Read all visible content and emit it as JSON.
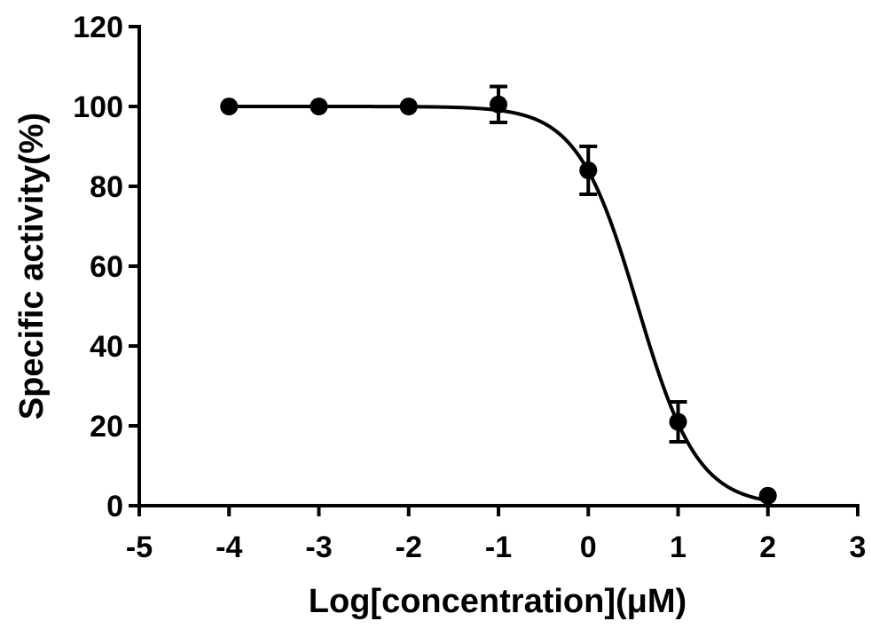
{
  "chart_data": {
    "type": "scatter",
    "title": "",
    "xlabel": "Log[concentration](μM)",
    "ylabel": "Specific activity(%)",
    "xlim": [
      -5,
      3
    ],
    "ylim": [
      0,
      120
    ],
    "xticks": [
      -5,
      -4,
      -3,
      -2,
      -1,
      0,
      1,
      2,
      3
    ],
    "xtick_labels": [
      "-5",
      "-4",
      "-3",
      "-2",
      "-1",
      "0",
      "1",
      "2",
      "3"
    ],
    "yticks": [
      0,
      20,
      40,
      60,
      80,
      100,
      120
    ],
    "ytick_labels": [
      "0",
      "20",
      "40",
      "60",
      "80",
      "100",
      "120"
    ],
    "grid": false,
    "legend": "none",
    "series": [
      {
        "x": [
          -4,
          -3,
          -2,
          -1,
          0,
          1,
          2
        ],
        "y": [
          100,
          100,
          100,
          100.5,
          84,
          21,
          2.5
        ],
        "error": [
          0,
          0,
          0,
          4.5,
          6,
          5,
          0
        ]
      }
    ],
    "fit": {
      "type": "sigmoidal-dose-response",
      "top": 100,
      "bottom": 0,
      "logIC50": 0.55,
      "hill_slope": 1.3
    },
    "colors": {
      "line": "#000000",
      "marker": "#000000"
    }
  }
}
